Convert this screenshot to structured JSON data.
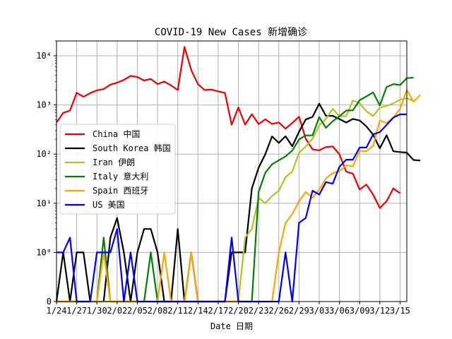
{
  "chart_data": {
    "type": "line",
    "title": "COVID-19 New Cases 新增确诊",
    "xlabel": "Date 日期",
    "ylabel": "",
    "yscale": "symlog",
    "ylim": [
      0,
      20000
    ],
    "grid": true,
    "legend_position": "center-left",
    "x_tick_labels": [
      "1/24",
      "1/27",
      "1/30",
      "2/02",
      "2/05",
      "2/08",
      "2/11",
      "2/14",
      "2/17",
      "2/20",
      "2/23",
      "2/26",
      "2/29",
      "3/03",
      "3/06",
      "3/09",
      "3/12",
      "3/15"
    ],
    "y_tick_labels": [
      {
        "label": "0",
        "value": 0
      },
      {
        "label": "10⁰",
        "value": 1
      },
      {
        "label": "10¹",
        "value": 10
      },
      {
        "label": "10²",
        "value": 100
      },
      {
        "label": "10³",
        "value": 1000
      },
      {
        "label": "10⁴",
        "value": 10000
      }
    ],
    "start_day": 24,
    "series": [
      {
        "name": "China 中国",
        "color": "#ee0000",
        "values": [
          440,
          690,
          770,
          1770,
          1460,
          1740,
          1980,
          2100,
          2590,
          2830,
          3240,
          3890,
          3690,
          3140,
          3390,
          2650,
          3000,
          2500,
          2010,
          15150,
          5100,
          2640,
          2010,
          2050,
          1890,
          1750,
          395,
          891,
          397,
          650,
          407,
          510,
          410,
          440,
          330,
          430,
          575,
          204,
          125,
          119,
          139,
          143,
          99,
          44,
          40,
          19,
          24,
          15,
          8,
          11,
          20,
          16
        ]
      },
      {
        "name": "South Korea 韩国",
        "color": "#000000",
        "values": [
          0,
          1,
          0,
          1,
          1,
          0,
          0,
          0,
          2,
          5,
          1,
          0,
          1,
          3,
          3,
          1,
          0,
          0,
          3,
          0,
          1,
          0,
          0,
          0,
          0,
          0,
          1,
          1,
          1,
          20,
          53,
          100,
          229,
          169,
          231,
          144,
          284,
          505,
          571,
          1062,
          600,
          600,
          515,
          438,
          518,
          483,
          367,
          248,
          131,
          242,
          114,
          110,
          107,
          76,
          74
        ]
      },
      {
        "name": "Iran 伊朗",
        "color": "#bcbd22",
        "values": [
          0,
          0,
          0,
          0,
          0,
          0,
          0,
          0,
          0,
          0,
          0,
          0,
          0,
          0,
          0,
          0,
          0,
          0,
          0,
          0,
          0,
          0,
          0,
          0,
          0,
          0,
          0,
          0,
          2,
          3,
          13,
          10,
          14,
          18,
          34,
          44,
          106,
          143,
          205,
          385,
          523,
          835,
          586,
          591,
          1234,
          1076,
          743,
          595,
          881,
          958,
          1075,
          1289,
          1365,
          1209
        ]
      },
      {
        "name": "Italy 意大利",
        "color": "#008000",
        "values": [
          0,
          0,
          0,
          0,
          0,
          0,
          0,
          2,
          0,
          0,
          0,
          0,
          0,
          0,
          1,
          0,
          0,
          0,
          0,
          0,
          0,
          0,
          0,
          0,
          0,
          0,
          0,
          0,
          0,
          0,
          17,
          42,
          62,
          75,
          90,
          118,
          198,
          240,
          240,
          566,
          342,
          466,
          587,
          769,
          778,
          1247,
          1492,
          1797,
          977,
          2313,
          2651,
          2547,
          3497,
          3590
        ]
      },
      {
        "name": "Spain 西班牙",
        "color": "#ffa500",
        "values": [
          0,
          0,
          0,
          0,
          0,
          0,
          0,
          1,
          0,
          0,
          0,
          0,
          0,
          0,
          0,
          0,
          1,
          0,
          0,
          0,
          1,
          0,
          0,
          0,
          0,
          0,
          0,
          0,
          0,
          0,
          0,
          0,
          0,
          1,
          4,
          6,
          11,
          17,
          13,
          19,
          32,
          41,
          45,
          59,
          56,
          117,
          114,
          149,
          483,
          429,
          551,
          839,
          2006,
          1159,
          1598
        ]
      },
      {
        "name": "US 美国",
        "color": "#0000ff",
        "values": [
          1,
          1,
          2,
          0,
          0,
          0,
          1,
          1,
          1,
          3,
          0,
          1,
          0,
          0,
          0,
          0,
          0,
          0,
          0,
          0,
          0,
          0,
          0,
          0,
          0,
          0,
          2,
          0,
          0,
          0,
          0,
          0,
          0,
          0,
          1,
          0,
          4,
          5,
          18,
          15,
          27,
          25,
          55,
          77,
          77,
          136,
          136,
          252,
          280,
          392,
          553,
          643,
          643
        ]
      }
    ]
  }
}
